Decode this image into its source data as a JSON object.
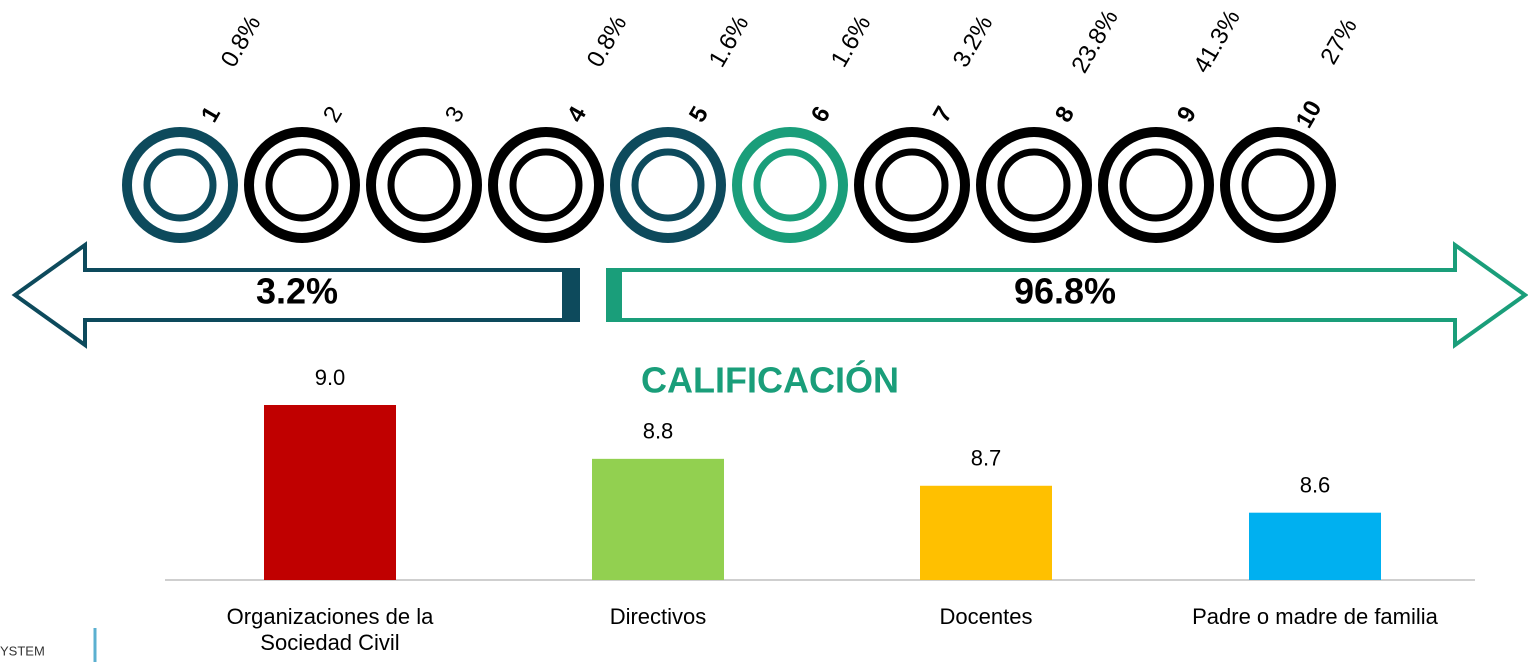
{
  "scale": {
    "labels": [
      "1",
      "2",
      "3",
      "4",
      "5",
      "6",
      "7",
      "8",
      "9",
      "10"
    ],
    "values": [
      0.8,
      null,
      null,
      0.8,
      1.6,
      1.6,
      3.2,
      23.8,
      41.3,
      27
    ],
    "value_labels": [
      "0.8%",
      null,
      null,
      "0.8%",
      "1.6%",
      "1.6%",
      "3.2%",
      "23.8%",
      "41.3%",
      "27%"
    ],
    "colors": [
      "#0d4a5c",
      "#000000",
      "#000000",
      "#000000",
      "#0d4a5c",
      "#1a9e7a",
      "#000000",
      "#000000",
      "#000000",
      "#000000"
    ]
  },
  "groups": [
    {
      "value": 3.2,
      "label": "3.2%",
      "color": "#0d4a5c"
    },
    {
      "value": 96.8,
      "label": "96.8%",
      "color": "#1a9e7a"
    }
  ],
  "chart_data": {
    "type": "bar",
    "title": "CALIFICACIÓN",
    "categories": [
      "Organizaciones de la Sociedad Civil",
      "Directivos",
      "Docentes",
      "Padre o madre de familia"
    ],
    "values": [
      9.0,
      8.8,
      8.7,
      8.6
    ],
    "value_labels": [
      "9.0",
      "8.8",
      "8.7",
      "8.6"
    ],
    "colors": [
      "#c00000",
      "#92d050",
      "#ffc000",
      "#00b0f0"
    ],
    "ylim": [
      8.35,
      9.0
    ]
  },
  "footer": "YSTEM"
}
